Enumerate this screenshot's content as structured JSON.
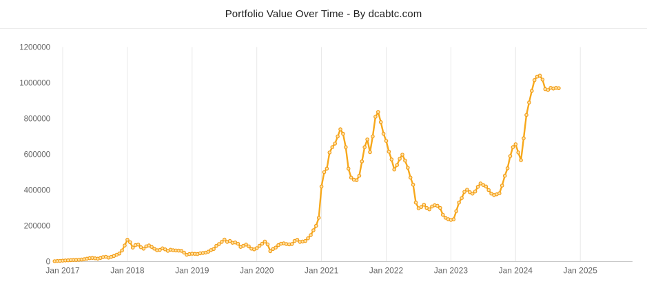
{
  "header": {
    "title": "Portfolio Value Over Time - By dcabtc.com"
  },
  "colors": {
    "line": "#f7a81b",
    "marker_fill": "#ffe2a6",
    "marker_stroke": "#f29c15",
    "grid": "#e8e8e8",
    "axis": "#c9c9c9",
    "tick_text": "#666666",
    "title_text": "#1f1f1f"
  },
  "chart_data": {
    "type": "line",
    "title": "Portfolio Value Over Time - By dcabtc.com",
    "xlabel": "",
    "ylabel": "",
    "legend": "none",
    "grid": "vertical-only",
    "ylim": [
      0,
      1200000
    ],
    "xlim_years": [
      2016.86,
      2025.81
    ],
    "x_tick_years": [
      2017,
      2018,
      2019,
      2020,
      2021,
      2022,
      2023,
      2024,
      2025
    ],
    "x_tick_labels": [
      "Jan 2017",
      "Jan 2018",
      "Jan 2019",
      "Jan 2020",
      "Jan 2021",
      "Jan 2022",
      "Jan 2023",
      "Jan 2024",
      "Jan 2025"
    ],
    "y_tick_values": [
      0,
      200000,
      400000,
      600000,
      800000,
      1000000,
      1200000
    ],
    "y_tick_labels": [
      "0",
      "200000",
      "400000",
      "600000",
      "800000",
      "1000000",
      "1200000"
    ],
    "series": [
      {
        "name": "Portfolio Value",
        "x_start_year": 2016.875,
        "x_step_years": 0.0416667,
        "values": [
          2000,
          3000,
          4000,
          5000,
          6000,
          7000,
          8000,
          9000,
          9000,
          10000,
          11000,
          13000,
          16000,
          19000,
          20000,
          18000,
          16000,
          20000,
          25000,
          27000,
          22000,
          26000,
          31000,
          38000,
          45000,
          62000,
          90000,
          122000,
          108000,
          78000,
          92000,
          95000,
          80000,
          72000,
          85000,
          90000,
          82000,
          72000,
          63000,
          65000,
          74000,
          68000,
          60000,
          66000,
          63000,
          62000,
          61000,
          60000,
          50000,
          38000,
          42000,
          44000,
          43000,
          42000,
          46000,
          48000,
          50000,
          55000,
          64000,
          70000,
          88000,
          98000,
          110000,
          123000,
          110000,
          115000,
          105000,
          107000,
          100000,
          82000,
          88000,
          95000,
          85000,
          72000,
          68000,
          75000,
          88000,
          100000,
          112000,
          96000,
          58000,
          70000,
          78000,
          92000,
          100000,
          102000,
          98000,
          96000,
          98000,
          115000,
          122000,
          110000,
          112000,
          115000,
          130000,
          148000,
          175000,
          200000,
          245000,
          420000,
          500000,
          520000,
          610000,
          640000,
          660000,
          700000,
          740000,
          715000,
          640000,
          520000,
          470000,
          458000,
          455000,
          480000,
          560000,
          640000,
          683000,
          612000,
          700000,
          810000,
          837000,
          780000,
          715000,
          675000,
          615000,
          571000,
          515000,
          540000,
          575000,
          598000,
          565000,
          525000,
          470000,
          430000,
          330000,
          298000,
          305000,
          318000,
          300000,
          292000,
          308000,
          315000,
          312000,
          300000,
          262000,
          245000,
          237000,
          233000,
          236000,
          282000,
          330000,
          355000,
          390000,
          402000,
          388000,
          380000,
          392000,
          418000,
          437000,
          428000,
          420000,
          400000,
          380000,
          372000,
          376000,
          382000,
          425000,
          480000,
          522000,
          590000,
          640000,
          656000,
          610000,
          567000,
          690000,
          820000,
          890000,
          955000,
          1015000,
          1035000,
          1040000,
          1018000,
          965000,
          960000,
          972000,
          968000,
          972000,
          970000
        ]
      }
    ]
  }
}
